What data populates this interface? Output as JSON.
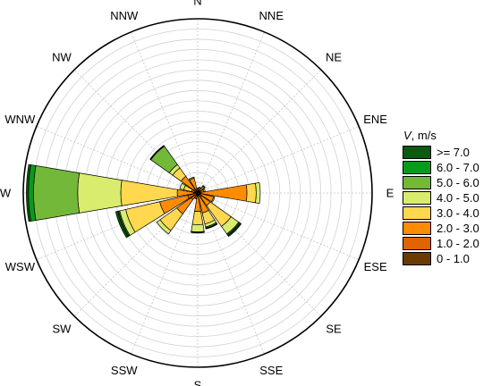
{
  "chart_data": {
    "type": "wind-rose",
    "directions": [
      "N",
      "NNE",
      "NE",
      "ENE",
      "E",
      "ESE",
      "SE",
      "SSE",
      "S",
      "SSW",
      "SW",
      "WSW",
      "W",
      "WNW",
      "NW",
      "NNW"
    ],
    "speed_bins": [
      {
        "label": "0 - 1.0",
        "color": "#6b3a00"
      },
      {
        "label": "1.0 - 2.0",
        "color": "#e06400"
      },
      {
        "label": "2.0 - 3.0",
        "color": "#ff8c00"
      },
      {
        "label": "3.0 - 4.0",
        "color": "#ffd84f"
      },
      {
        "label": "4.0 - 5.0",
        "color": "#d9ec6e"
      },
      {
        "label": "5.0 - 6.0",
        "color": "#74b83a"
      },
      {
        "label": "6.0 - 7.0",
        "color": "#0a9a1a"
      },
      {
        "label": ">= 7.0",
        "color": "#0a5a0f"
      }
    ],
    "cumulative_by_direction": {
      "N": [
        0.1,
        0.2,
        0.4,
        0.5,
        0.5,
        0.5,
        0.5,
        0.5
      ],
      "NNE": [
        0.1,
        0.3,
        0.5,
        0.6,
        0.6,
        0.6,
        0.6,
        0.6
      ],
      "NE": [
        0.1,
        0.3,
        0.6,
        0.75,
        0.85,
        0.9,
        0.9,
        0.9
      ],
      "ENE": [
        0.1,
        0.3,
        0.6,
        0.75,
        0.75,
        0.75,
        0.75,
        0.75
      ],
      "E": [
        0.1,
        0.3,
        4.8,
        5.7,
        6.1,
        6.1,
        6.1,
        6.1
      ],
      "ESE": [
        0.1,
        0.3,
        1.6,
        1.7,
        1.7,
        1.7,
        1.7,
        1.7
      ],
      "SE": [
        0.1,
        0.5,
        1.5,
        4.0,
        4.9,
        5.0,
        5.1,
        5.2
      ],
      "SSE": [
        0.1,
        0.3,
        2.0,
        3.1,
        3.4,
        3.5,
        3.55,
        3.6
      ],
      "S": [
        0.1,
        0.3,
        1.8,
        3.1,
        3.8,
        3.85,
        3.85,
        3.9
      ],
      "SSW": [
        0.1,
        0.3,
        0.5,
        0.6,
        0.6,
        0.6,
        0.6,
        0.6
      ],
      "SW": [
        0.1,
        0.8,
        2.5,
        4.5,
        4.9,
        4.9,
        4.9,
        4.9
      ],
      "WSW": [
        0.1,
        1.0,
        3.8,
        7.2,
        7.8,
        7.9,
        8.0,
        8.2
      ],
      "W": [
        0.1,
        0.4,
        2.0,
        7.5,
        11.7,
        16.0,
        16.5,
        16.7
      ],
      "WNW": [
        0.1,
        0.3,
        0.6,
        1.4,
        1.8,
        1.8,
        1.8,
        1.8
      ],
      "NW": [
        0.1,
        0.5,
        2.0,
        3.0,
        3.4,
        5.6,
        5.65,
        5.7
      ],
      "NNW": [
        0.1,
        0.3,
        1.5,
        1.6,
        1.6,
        1.6,
        1.6,
        1.6
      ]
    },
    "radial_max": 17.0,
    "ring_step": 1.0,
    "grid": true,
    "legend_position": "right",
    "legend_title_symbol": "V",
    "legend_title_unit": ", m/s"
  }
}
